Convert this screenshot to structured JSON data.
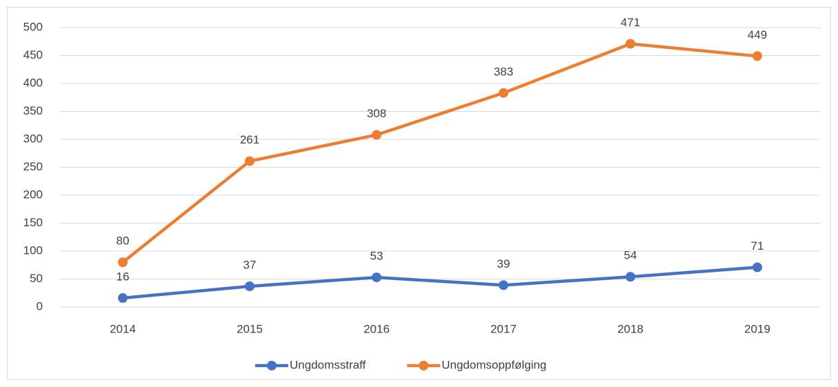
{
  "chart_data": {
    "type": "line",
    "categories": [
      "2014",
      "2015",
      "2016",
      "2017",
      "2018",
      "2019"
    ],
    "series": [
      {
        "name": "Ungdomsstraff",
        "color": "#4472c4",
        "values": [
          16,
          37,
          53,
          39,
          54,
          71
        ]
      },
      {
        "name": "Ungdomsoppfølging",
        "color": "#ed7d31",
        "values": [
          80,
          261,
          308,
          383,
          471,
          449
        ]
      }
    ],
    "ylim": [
      0,
      500
    ],
    "yticks": [
      0,
      50,
      100,
      150,
      200,
      250,
      300,
      350,
      400,
      450,
      500
    ],
    "grid": true,
    "legend": "bottom"
  }
}
